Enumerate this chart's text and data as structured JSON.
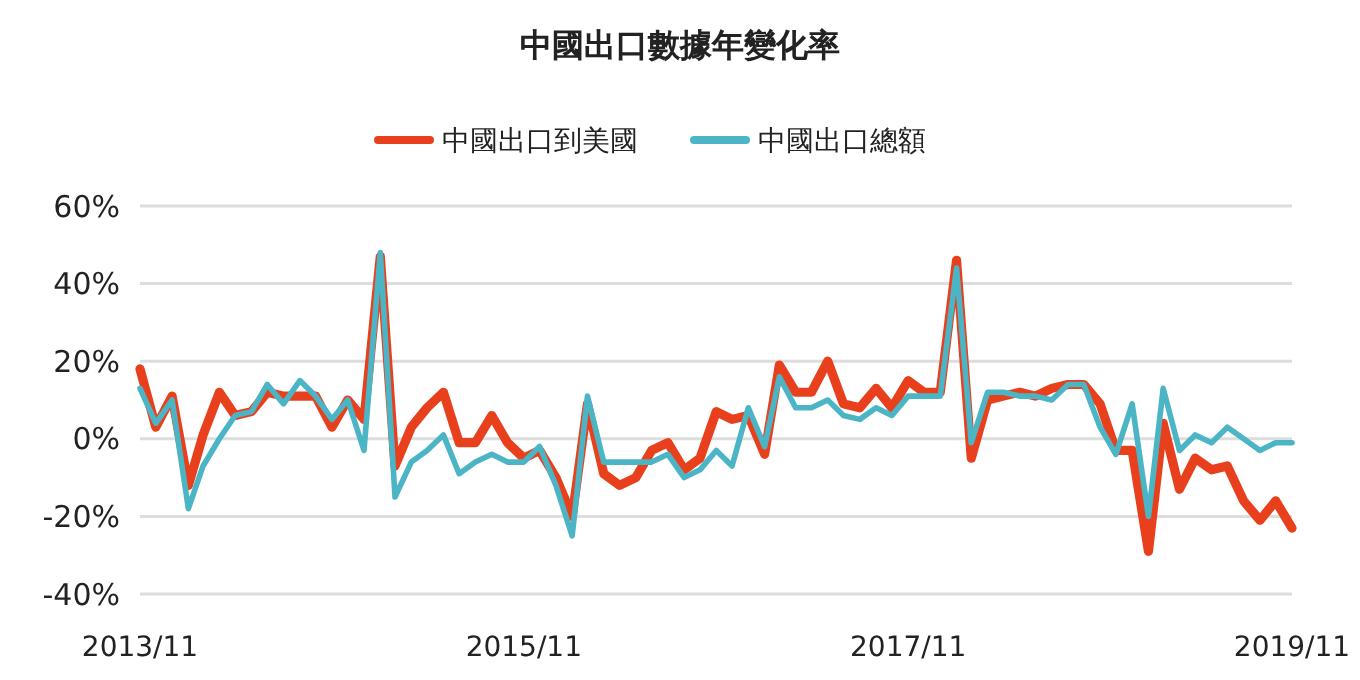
{
  "chart_data": {
    "type": "line",
    "title": "中國出口數據年變化率",
    "x": [
      "2013-11",
      "2013-12",
      "2014-01",
      "2014-02",
      "2014-03",
      "2014-04",
      "2014-05",
      "2014-06",
      "2014-07",
      "2014-08",
      "2014-09",
      "2014-10",
      "2014-11",
      "2014-12",
      "2015-01",
      "2015-02",
      "2015-03",
      "2015-04",
      "2015-05",
      "2015-06",
      "2015-07",
      "2015-08",
      "2015-09",
      "2015-10",
      "2015-11",
      "2015-12",
      "2016-01",
      "2016-02",
      "2016-03",
      "2016-04",
      "2016-05",
      "2016-06",
      "2016-07",
      "2016-08",
      "2016-09",
      "2016-10",
      "2016-11",
      "2016-12",
      "2017-01",
      "2017-02",
      "2017-03",
      "2017-04",
      "2017-05",
      "2017-06",
      "2017-07",
      "2017-08",
      "2017-09",
      "2017-10",
      "2017-11",
      "2017-12",
      "2018-01",
      "2018-02",
      "2018-03",
      "2018-04",
      "2018-05",
      "2018-06",
      "2018-07",
      "2018-08",
      "2018-09",
      "2018-10",
      "2018-11",
      "2018-12",
      "2019-01",
      "2019-02",
      "2019-03",
      "2019-04",
      "2019-05",
      "2019-06",
      "2019-07",
      "2019-08",
      "2019-09",
      "2019-10",
      "2019-11"
    ],
    "series": [
      {
        "name": "中國出口到美國",
        "color": "#e8401c",
        "values": [
          18,
          3,
          11,
          -12,
          1,
          12,
          6,
          7,
          12,
          11,
          11,
          11,
          3,
          10,
          5,
          47,
          -7,
          3,
          8,
          12,
          -1,
          -1,
          6,
          -1,
          -5,
          -3,
          -10,
          -20,
          9,
          -9,
          -12,
          -10,
          -3,
          -1,
          -8,
          -5,
          7,
          5,
          6,
          -4,
          19,
          12,
          12,
          20,
          9,
          8,
          13,
          8,
          15,
          12,
          12,
          46,
          -5,
          10,
          11,
          12,
          11,
          13,
          14,
          14,
          9,
          -3,
          -3,
          -29,
          4,
          -13,
          -5,
          -8,
          -7,
          -16,
          -21,
          -16,
          -23
        ]
      },
      {
        "name": "中國出口總額",
        "color": "#4bb5c6",
        "values": [
          13,
          4,
          10,
          -18,
          -7,
          0,
          6,
          7,
          14,
          9,
          15,
          11,
          5,
          10,
          -3,
          48,
          -15,
          -6,
          -3,
          1,
          -9,
          -6,
          -4,
          -6,
          -6,
          -2,
          -12,
          -25,
          11,
          -6,
          -6,
          -6,
          -6,
          -4,
          -10,
          -8,
          -3,
          -7,
          8,
          -2,
          16,
          8,
          8,
          10,
          6,
          5,
          8,
          6,
          11,
          11,
          11,
          44,
          -1,
          12,
          12,
          11,
          11,
          10,
          14,
          14,
          3,
          -4,
          9,
          -20,
          13,
          -3,
          1,
          -1,
          3,
          0,
          -3,
          -1,
          -1
        ]
      }
    ],
    "xlim": [
      "2013-11",
      "2019-11"
    ],
    "xticks": [
      {
        "value": "2013-11",
        "label": "2013/11"
      },
      {
        "value": "2015-11",
        "label": "2015/11"
      },
      {
        "value": "2017-11",
        "label": "2017/11"
      },
      {
        "value": "2019-11",
        "label": "2019/11"
      }
    ],
    "ylim": [
      -40,
      60
    ],
    "yticks": [
      {
        "value": -40,
        "label": "-40%"
      },
      {
        "value": -20,
        "label": "-20%"
      },
      {
        "value": 0,
        "label": "0%"
      },
      {
        "value": 20,
        "label": "20%"
      },
      {
        "value": 40,
        "label": "40%"
      },
      {
        "value": 60,
        "label": "60%"
      }
    ],
    "grid": "y",
    "legend": "top",
    "line_style": "solid",
    "marker": "none"
  }
}
